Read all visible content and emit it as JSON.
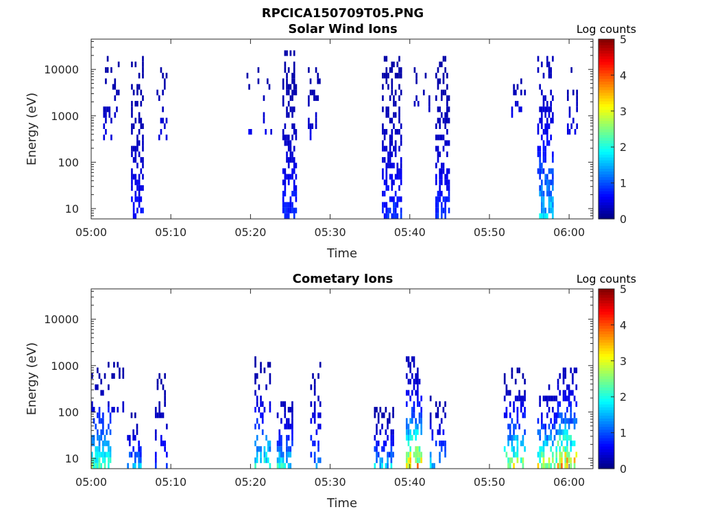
{
  "figure": {
    "title": "RPCICA150709T05.PNG"
  },
  "chart_data": [
    {
      "type": "heatmap",
      "title": "Solar Wind Ions",
      "xlabel": "Time",
      "ylabel": "Energy (eV)",
      "x_ticks": [
        "05:00",
        "05:10",
        "05:20",
        "05:30",
        "05:40",
        "05:50",
        "06:00"
      ],
      "x_range_minutes": [
        0,
        63
      ],
      "y_scale": "log",
      "y_ticks": [
        10,
        100,
        1000,
        10000
      ],
      "y_tick_labels": [
        "10",
        "100",
        "1000",
        "10000"
      ],
      "ylim": [
        6,
        45000
      ],
      "colorbar": {
        "label": "Log counts",
        "min": 0,
        "max": 5,
        "ticks": [
          "0",
          "1",
          "2",
          "3",
          "4",
          "5"
        ],
        "colormap": "jet"
      },
      "clusters": [
        {
          "t": [
            1.5,
            3.5
          ],
          "e": [
            300,
            15000
          ],
          "density": 0.25,
          "level": [
            0.2,
            0.6
          ]
        },
        {
          "t": [
            5.0,
            6.5
          ],
          "e": [
            6,
            15000
          ],
          "density": 0.6,
          "level": [
            0.2,
            0.8
          ]
        },
        {
          "t": [
            8.2,
            9.5
          ],
          "e": [
            350,
            10000
          ],
          "density": 0.35,
          "level": [
            0.2,
            0.6
          ]
        },
        {
          "t": [
            19.5,
            22.5
          ],
          "e": [
            500,
            10000
          ],
          "density": 0.15,
          "level": [
            0.2,
            0.6
          ]
        },
        {
          "t": [
            24.0,
            25.8
          ],
          "e": [
            6,
            20000
          ],
          "density": 0.65,
          "level": [
            0.2,
            1.0
          ]
        },
        {
          "t": [
            27.2,
            28.8
          ],
          "e": [
            350,
            9000
          ],
          "density": 0.3,
          "level": [
            0.2,
            0.6
          ]
        },
        {
          "t": [
            36.5,
            38.8
          ],
          "e": [
            6,
            15000
          ],
          "density": 0.6,
          "level": [
            0.2,
            1.0
          ]
        },
        {
          "t": [
            40.5,
            42.5
          ],
          "e": [
            600,
            10000
          ],
          "density": 0.2,
          "level": [
            0.2,
            0.6
          ]
        },
        {
          "t": [
            43.2,
            45.0
          ],
          "e": [
            6,
            15000
          ],
          "density": 0.65,
          "level": [
            0.2,
            1.0
          ]
        },
        {
          "t": [
            52.5,
            54.5
          ],
          "e": [
            1000,
            10000
          ],
          "density": 0.2,
          "level": [
            0.2,
            0.6
          ]
        },
        {
          "t": [
            56.0,
            58.0
          ],
          "e": [
            6,
            15000
          ],
          "density": 0.65,
          "level": [
            0.3,
            2.0
          ]
        },
        {
          "t": [
            59.5,
            61.0
          ],
          "e": [
            400,
            12000
          ],
          "density": 0.25,
          "level": [
            0.2,
            0.6
          ]
        }
      ]
    },
    {
      "type": "heatmap",
      "title": "Cometary Ions",
      "xlabel": "Time",
      "ylabel": "Energy (eV)",
      "x_ticks": [
        "05:00",
        "05:10",
        "05:20",
        "05:30",
        "05:40",
        "05:50",
        "06:00"
      ],
      "x_range_minutes": [
        0,
        63
      ],
      "y_scale": "log",
      "y_ticks": [
        10,
        100,
        1000,
        10000
      ],
      "y_tick_labels": [
        "10",
        "100",
        "1000",
        "10000"
      ],
      "ylim": [
        6,
        45000
      ],
      "colorbar": {
        "label": "Log counts",
        "min": 0,
        "max": 5,
        "ticks": [
          "0",
          "1",
          "2",
          "3",
          "4",
          "5"
        ],
        "colormap": "jet"
      },
      "clusters": [
        {
          "t": [
            0.0,
            2.5
          ],
          "e": [
            6,
            120
          ],
          "density": 0.8,
          "level": [
            0.8,
            2.8
          ]
        },
        {
          "t": [
            0.0,
            4.0
          ],
          "e": [
            100,
            1000
          ],
          "density": 0.15,
          "level": [
            0.2,
            0.5
          ]
        },
        {
          "t": [
            4.5,
            6.2
          ],
          "e": [
            6,
            80
          ],
          "density": 0.5,
          "level": [
            0.2,
            1.8
          ]
        },
        {
          "t": [
            8.0,
            9.5
          ],
          "e": [
            6,
            600
          ],
          "density": 0.3,
          "level": [
            0.2,
            1.0
          ]
        },
        {
          "t": [
            20.5,
            22.5
          ],
          "e": [
            6,
            1300
          ],
          "density": 0.45,
          "level": [
            0.2,
            2.5
          ]
        },
        {
          "t": [
            23.3,
            25.2
          ],
          "e": [
            6,
            150
          ],
          "density": 0.6,
          "level": [
            0.3,
            2.3
          ]
        },
        {
          "t": [
            27.5,
            28.8
          ],
          "e": [
            6,
            1300
          ],
          "density": 0.35,
          "level": [
            0.2,
            1.5
          ]
        },
        {
          "t": [
            35.5,
            38.0
          ],
          "e": [
            6,
            100
          ],
          "density": 0.6,
          "level": [
            0.2,
            2.0
          ]
        },
        {
          "t": [
            39.5,
            41.5
          ],
          "e": [
            6,
            1200
          ],
          "density": 0.65,
          "level": [
            0.3,
            4.0
          ]
        },
        {
          "t": [
            42.5,
            44.5
          ],
          "e": [
            6,
            200
          ],
          "density": 0.4,
          "level": [
            0.2,
            2.0
          ]
        },
        {
          "t": [
            51.8,
            54.5
          ],
          "e": [
            6,
            700
          ],
          "density": 0.55,
          "level": [
            0.2,
            3.4
          ]
        },
        {
          "t": [
            56.0,
            58.5
          ],
          "e": [
            6,
            300
          ],
          "density": 0.6,
          "level": [
            0.3,
            3.6
          ]
        },
        {
          "t": [
            58.5,
            61.0
          ],
          "e": [
            6,
            900
          ],
          "density": 0.7,
          "level": [
            0.3,
            4.2
          ]
        }
      ]
    }
  ]
}
